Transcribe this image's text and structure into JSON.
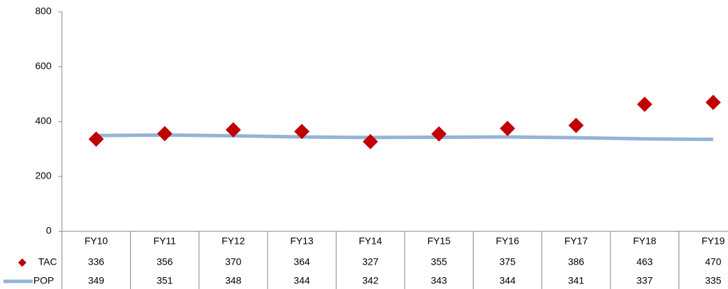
{
  "chart_data": {
    "type": "line",
    "categories": [
      "FY10",
      "FY11",
      "FY12",
      "FY13",
      "FY14",
      "FY15",
      "FY16",
      "FY17",
      "FY18",
      "FY19"
    ],
    "series": [
      {
        "name": "TAC",
        "color": "#c00000",
        "style": "marker",
        "values": [
          336,
          356,
          370,
          364,
          327,
          355,
          375,
          386,
          463,
          470
        ]
      },
      {
        "name": "POP",
        "color": "#95b3d7",
        "style": "line",
        "values": [
          349,
          351,
          348,
          344,
          342,
          343,
          344,
          341,
          337,
          335
        ]
      }
    ],
    "ylim": [
      0,
      800
    ],
    "yticks": [
      0,
      200,
      400,
      600,
      800
    ],
    "grid": false,
    "data_table": true
  }
}
